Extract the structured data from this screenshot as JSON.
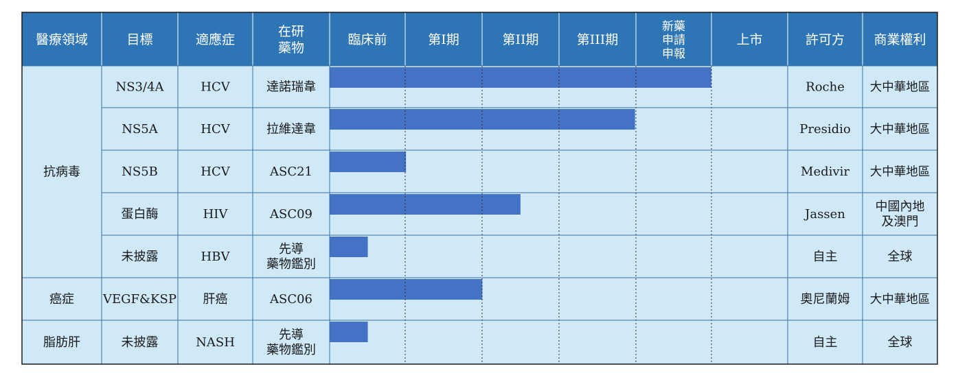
{
  "headers": {
    "area": "醫療領域",
    "target": "目標",
    "indication": "適應症",
    "drug_l1": "在研",
    "drug_l2": "藥物",
    "stage_preclinical": "臨床前",
    "stage_phase1": "第I期",
    "stage_phase2": "第II期",
    "stage_phase3": "第III期",
    "stage_nda_l1": "新藥",
    "stage_nda_l2": "申請",
    "stage_nda_l3": "申報",
    "stage_launch": "上市",
    "licensor": "許可方",
    "rights": "商業權利"
  },
  "areas": [
    {
      "label": "抗病毒"
    },
    {
      "label": "癌症"
    },
    {
      "label": "脂肪肝"
    }
  ],
  "rows": [
    {
      "target": "NS3/4A",
      "indication": "HCV",
      "drug": [
        "達諾瑞韋"
      ],
      "licensor": "Roche",
      "rights": [
        "大中華地區"
      ]
    },
    {
      "target": "NS5A",
      "indication": "HCV",
      "drug": [
        "拉維達韋"
      ],
      "licensor": "Presidio",
      "rights": [
        "大中華地區"
      ]
    },
    {
      "target": "NS5B",
      "indication": "HCV",
      "drug": [
        "ASC21"
      ],
      "licensor": "Medivir",
      "rights": [
        "大中華地區"
      ]
    },
    {
      "target": "蛋白酶",
      "indication": "HIV",
      "drug": [
        "ASC09"
      ],
      "licensor": "Jassen",
      "rights": [
        "中國內地",
        "及澳門"
      ]
    },
    {
      "target": "未披露",
      "indication": "HBV",
      "drug": [
        "先導",
        "藥物鑑別"
      ],
      "licensor": "自主",
      "rights": [
        "全球"
      ]
    },
    {
      "target": "VEGF&KSP",
      "indication": "肝癌",
      "drug": [
        "ASC06"
      ],
      "licensor": "奧尼蘭姆",
      "rights": [
        "大中華地區"
      ]
    },
    {
      "target": "未披露",
      "indication": "NASH",
      "drug": [
        "先導",
        "藥物鑑別"
      ],
      "licensor": "自主",
      "rights": [
        "全球"
      ]
    }
  ],
  "colors": {
    "header_bg": "#2E75B6",
    "header_text": "#FFFFFF",
    "body_bg": "#CFE9F8",
    "bar": "#4472C4",
    "grid": "#3B6E9E",
    "text": "#1A1A1A"
  },
  "chart_data": {
    "type": "bar",
    "orientation": "horizontal",
    "stages": [
      "臨床前",
      "第I期",
      "第II期",
      "第III期",
      "新藥申請申報",
      "上市"
    ],
    "categories": [
      "達諾瑞韋",
      "拉維達韋",
      "ASC21",
      "ASC09",
      "先導藥物鑑別 (HBV)",
      "ASC06",
      "先導藥物鑑別 (NASH)"
    ],
    "values": [
      5.0,
      4.0,
      1.0,
      2.5,
      0.5,
      2.0,
      0.5
    ],
    "xlim": [
      0,
      6
    ],
    "grid": true
  }
}
